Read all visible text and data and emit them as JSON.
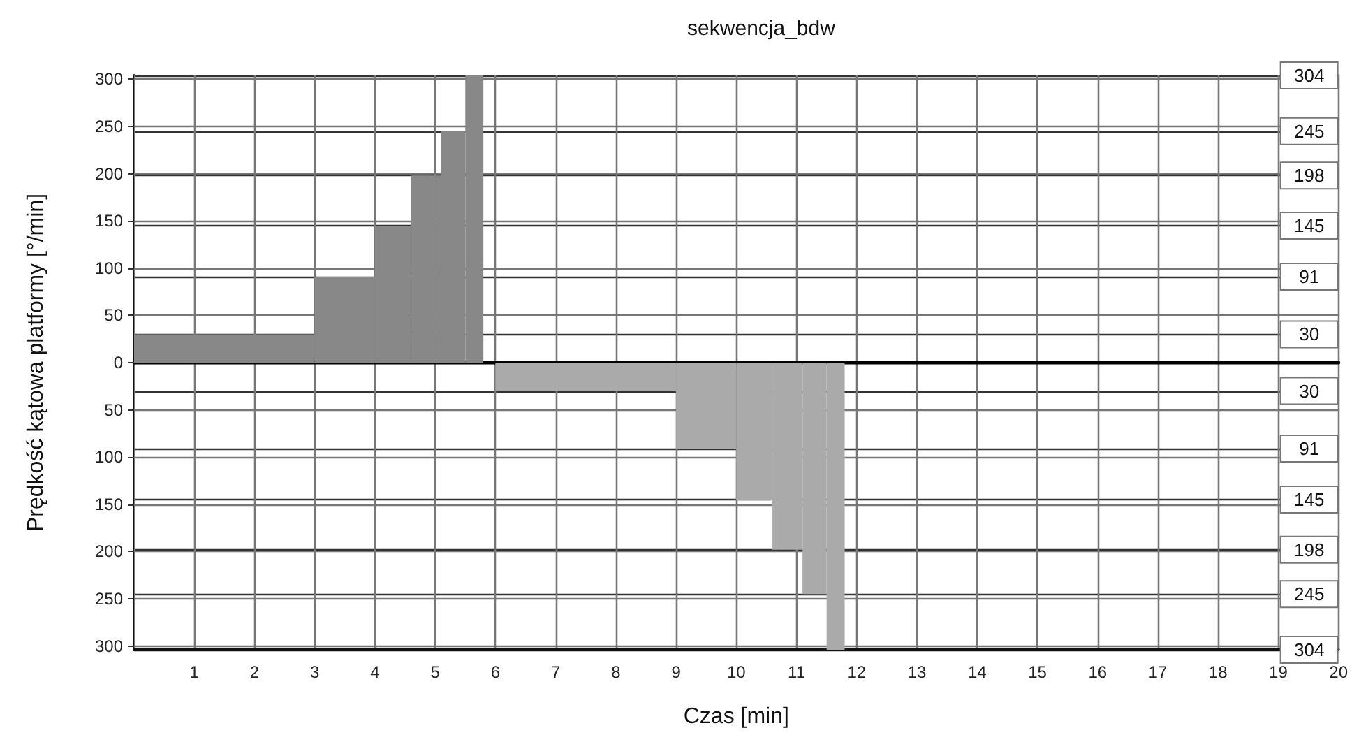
{
  "chart_data": {
    "type": "histogram",
    "title": "sekwencja_bdw",
    "xlabel": "Czas [min]",
    "ylabel": "Prędkość kątowa platformy [°/min]",
    "bins": [
      0,
      3,
      4,
      4.6,
      5.1,
      5.5,
      5.8,
      6,
      9,
      10,
      10.6,
      11.1,
      11.5,
      11.8
    ],
    "values": [
      30,
      91,
      145,
      198,
      245,
      304,
      null,
      -30,
      -91,
      -145,
      -198,
      -245,
      -304
    ],
    "colors": [
      "#888888",
      "#888888",
      "#888888",
      "#888888",
      "#888888",
      "#888888",
      null,
      "#aaaaaa",
      "#aaaaaa",
      "#aaaaaa",
      "#aaaaaa",
      "#aaaaaa",
      "#aaaaaa"
    ],
    "xlim": [
      0,
      20
    ],
    "xticks": [
      1,
      2,
      3,
      4,
      5,
      6,
      7,
      8,
      9,
      10,
      11,
      12,
      13,
      14,
      15,
      16,
      17,
      18,
      19,
      20
    ],
    "ylim": [
      -304,
      304
    ],
    "yticks": [
      {
        "value": 300,
        "label": "300"
      },
      {
        "value": 250,
        "label": "250"
      },
      {
        "value": 200,
        "label": "200"
      },
      {
        "value": 150,
        "label": "150"
      },
      {
        "value": 100,
        "label": "100"
      },
      {
        "value": 50,
        "label": "50"
      },
      {
        "value": 0,
        "label": "0"
      },
      {
        "value": -50,
        "label": "50"
      },
      {
        "value": -100,
        "label": "100"
      },
      {
        "value": -150,
        "label": "150"
      },
      {
        "value": -200,
        "label": "200"
      },
      {
        "value": -250,
        "label": "250"
      },
      {
        "value": -300,
        "label": "300"
      }
    ],
    "y2lim": [
      -304,
      304
    ],
    "y2ticks": [
      {
        "value": 304,
        "label": "304"
      },
      {
        "value": 245,
        "label": "245"
      },
      {
        "value": 198,
        "label": "198"
      },
      {
        "value": 145,
        "label": "145"
      },
      {
        "value": 91,
        "label": "91"
      },
      {
        "value": 30,
        "label": "30"
      },
      {
        "value": -30,
        "label": "30"
      },
      {
        "value": -91,
        "label": "91"
      },
      {
        "value": -145,
        "label": "145"
      },
      {
        "value": -198,
        "label": "198"
      },
      {
        "value": -245,
        "label": "245"
      },
      {
        "value": -304,
        "label": "304"
      }
    ],
    "grid": true
  }
}
